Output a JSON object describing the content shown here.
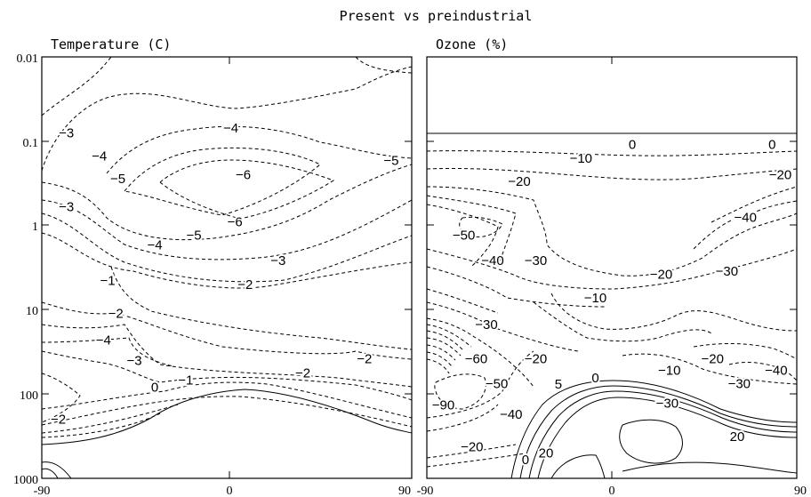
{
  "figure": {
    "title": "Present vs preindustrial"
  },
  "chart_data": [
    {
      "type": "contour",
      "title": "Temperature (C)",
      "xlim": [
        -90,
        90
      ],
      "ylim": [
        1000,
        0.01
      ],
      "yscale": "log",
      "x_ticks": [
        "-90",
        "0",
        "90"
      ],
      "y_ticks": [
        "0.01",
        "0.1",
        "1",
        "10",
        "100",
        "1000"
      ],
      "contour_labels": [
        {
          "text": "-4",
          "x": 2,
          "y": 0.07
        },
        {
          "text": "-3",
          "x": -78,
          "y": 0.08
        },
        {
          "text": "-4",
          "x": -62,
          "y": 0.15
        },
        {
          "text": "-5",
          "x": -53,
          "y": 0.28
        },
        {
          "text": "-6",
          "x": 8,
          "y": 0.25
        },
        {
          "text": "-5",
          "x": 80,
          "y": 0.17
        },
        {
          "text": "-3",
          "x": -78,
          "y": 0.6
        },
        {
          "text": "-6",
          "x": 4,
          "y": 0.9
        },
        {
          "text": "-5",
          "x": -16,
          "y": 1.3
        },
        {
          "text": "-4",
          "x": -35,
          "y": 1.7
        },
        {
          "text": "-3",
          "x": 25,
          "y": 2.6
        },
        {
          "text": "-2",
          "x": 9,
          "y": 5
        },
        {
          "text": "-1",
          "x": -58,
          "y": 4.5
        },
        {
          "text": "-2",
          "x": -54,
          "y": 11
        },
        {
          "text": "-4",
          "x": -60,
          "y": 23
        },
        {
          "text": "-3",
          "x": -45,
          "y": 40
        },
        {
          "text": "-2",
          "x": 67,
          "y": 38
        },
        {
          "text": "-2",
          "x": 37,
          "y": 56
        },
        {
          "text": "-1",
          "x": -20,
          "y": 68
        },
        {
          "text": "0",
          "x": -35,
          "y": 83
        },
        {
          "text": "-2",
          "x": -82,
          "y": 200
        }
      ]
    },
    {
      "type": "contour",
      "title": "Ozone (%)",
      "xlim": [
        -90,
        90
      ],
      "ylim": [
        1000,
        0.01
      ],
      "yscale": "log",
      "x_ticks": [
        "-90",
        "0",
        "90"
      ],
      "contour_labels": [
        {
          "text": "0",
          "x": 10,
          "y": 0.11
        },
        {
          "text": "0",
          "x": 78,
          "y": 0.11
        },
        {
          "text": "-10",
          "x": -15,
          "y": 0.16
        },
        {
          "text": "-20",
          "x": -45,
          "y": 0.3
        },
        {
          "text": "-20",
          "x": 82,
          "y": 0.25
        },
        {
          "text": "-40",
          "x": 65,
          "y": 0.8
        },
        {
          "text": "-50",
          "x": -72,
          "y": 1.3
        },
        {
          "text": "-40",
          "x": -58,
          "y": 2.6
        },
        {
          "text": "-30",
          "x": -37,
          "y": 2.6
        },
        {
          "text": "-20",
          "x": 24,
          "y": 3.8
        },
        {
          "text": "-30",
          "x": 56,
          "y": 3.5
        },
        {
          "text": "-10",
          "x": -8,
          "y": 7.2
        },
        {
          "text": "-30",
          "x": -61,
          "y": 15
        },
        {
          "text": "-60",
          "x": -66,
          "y": 38
        },
        {
          "text": "-20",
          "x": -37,
          "y": 38
        },
        {
          "text": "-20",
          "x": 49,
          "y": 38
        },
        {
          "text": "-10",
          "x": 28,
          "y": 52
        },
        {
          "text": "-40",
          "x": 80,
          "y": 52
        },
        {
          "text": "-50",
          "x": -56,
          "y": 75
        },
        {
          "text": "5",
          "x": -26,
          "y": 76
        },
        {
          "text": "0",
          "x": -8,
          "y": 64
        },
        {
          "text": "-30",
          "x": 62,
          "y": 75
        },
        {
          "text": "-90",
          "x": -82,
          "y": 135
        },
        {
          "text": "-40",
          "x": -49,
          "y": 175
        },
        {
          "text": "-30",
          "x": 27,
          "y": 128
        },
        {
          "text": "20",
          "x": 61,
          "y": 320
        },
        {
          "text": "-20",
          "x": -68,
          "y": 420
        },
        {
          "text": "0",
          "x": -42,
          "y": 600
        },
        {
          "text": "20",
          "x": -32,
          "y": 500
        }
      ]
    }
  ]
}
